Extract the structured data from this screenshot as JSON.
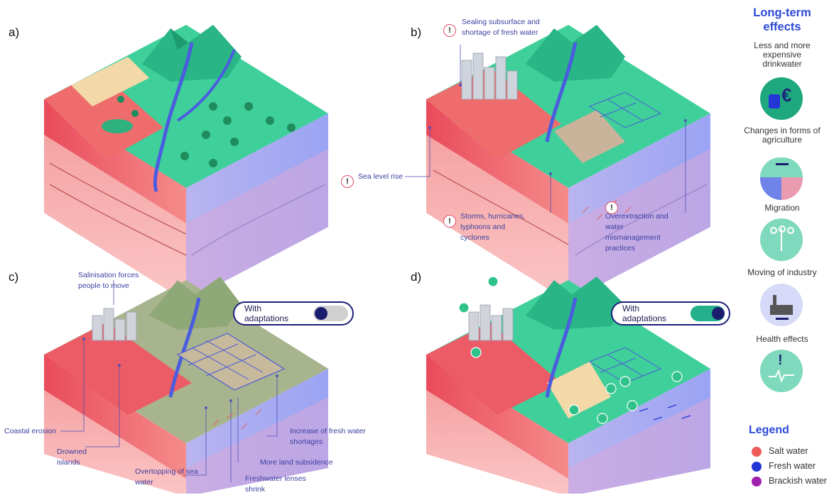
{
  "panels": {
    "a": "a)",
    "b": "b)",
    "c": "c)",
    "d": "d)"
  },
  "annotations_b": {
    "sealing": "Sealing subsurface and shortage of fresh water",
    "sea_level": "Sea level rise",
    "storms": "Storms, hurricanes, typhoons and cyclones",
    "overextraction": "Overextraction and water mismanagement practices",
    "warn_symbol": "!"
  },
  "annotations_c": {
    "salinisation": "Salinisation forces people to move",
    "coastal_erosion": "Coastal erosion",
    "drowned": "Drowned islands",
    "overtopping": "Overtopping of sea water",
    "freshwater_lenses": "Freshwater lenses shrink",
    "subsidence": "More land subsidence",
    "shortages": "Increase of fresh water shortages"
  },
  "toggles": {
    "c": {
      "label": "With adaptations",
      "state": "off"
    },
    "d": {
      "label": "With adaptations",
      "state": "on"
    }
  },
  "sidebar": {
    "title": "Long-term effects",
    "items": [
      {
        "label": "Less and more expensive drinkwater",
        "icon": "drinkwater-euro-icon"
      },
      {
        "label": "Changes in forms of agriculture",
        "icon": "agriculture-change-icon"
      },
      {
        "label": "Migration",
        "icon": "migration-icon"
      },
      {
        "label": "Moving of industry",
        "icon": "industry-moving-icon"
      },
      {
        "label": "Health effects",
        "icon": "health-icon"
      }
    ],
    "euro_symbol": "€",
    "health_symbol": "!"
  },
  "legend": {
    "title": "Legend",
    "items": [
      {
        "label": "Salt water",
        "color": "#ef5a5a"
      },
      {
        "label": "Fresh water",
        "color": "#2436d6"
      },
      {
        "label": "Brackish water",
        "color": "#a020b0"
      }
    ]
  },
  "colors": {
    "salt": "#ef5a5a",
    "fresh": "#8f9af0",
    "land": "#f6a8a8",
    "green": "#2fc28a",
    "accent": "#2b49d6",
    "toggle_on": "#23b08a",
    "toggle_off": "#d0d0d0"
  }
}
